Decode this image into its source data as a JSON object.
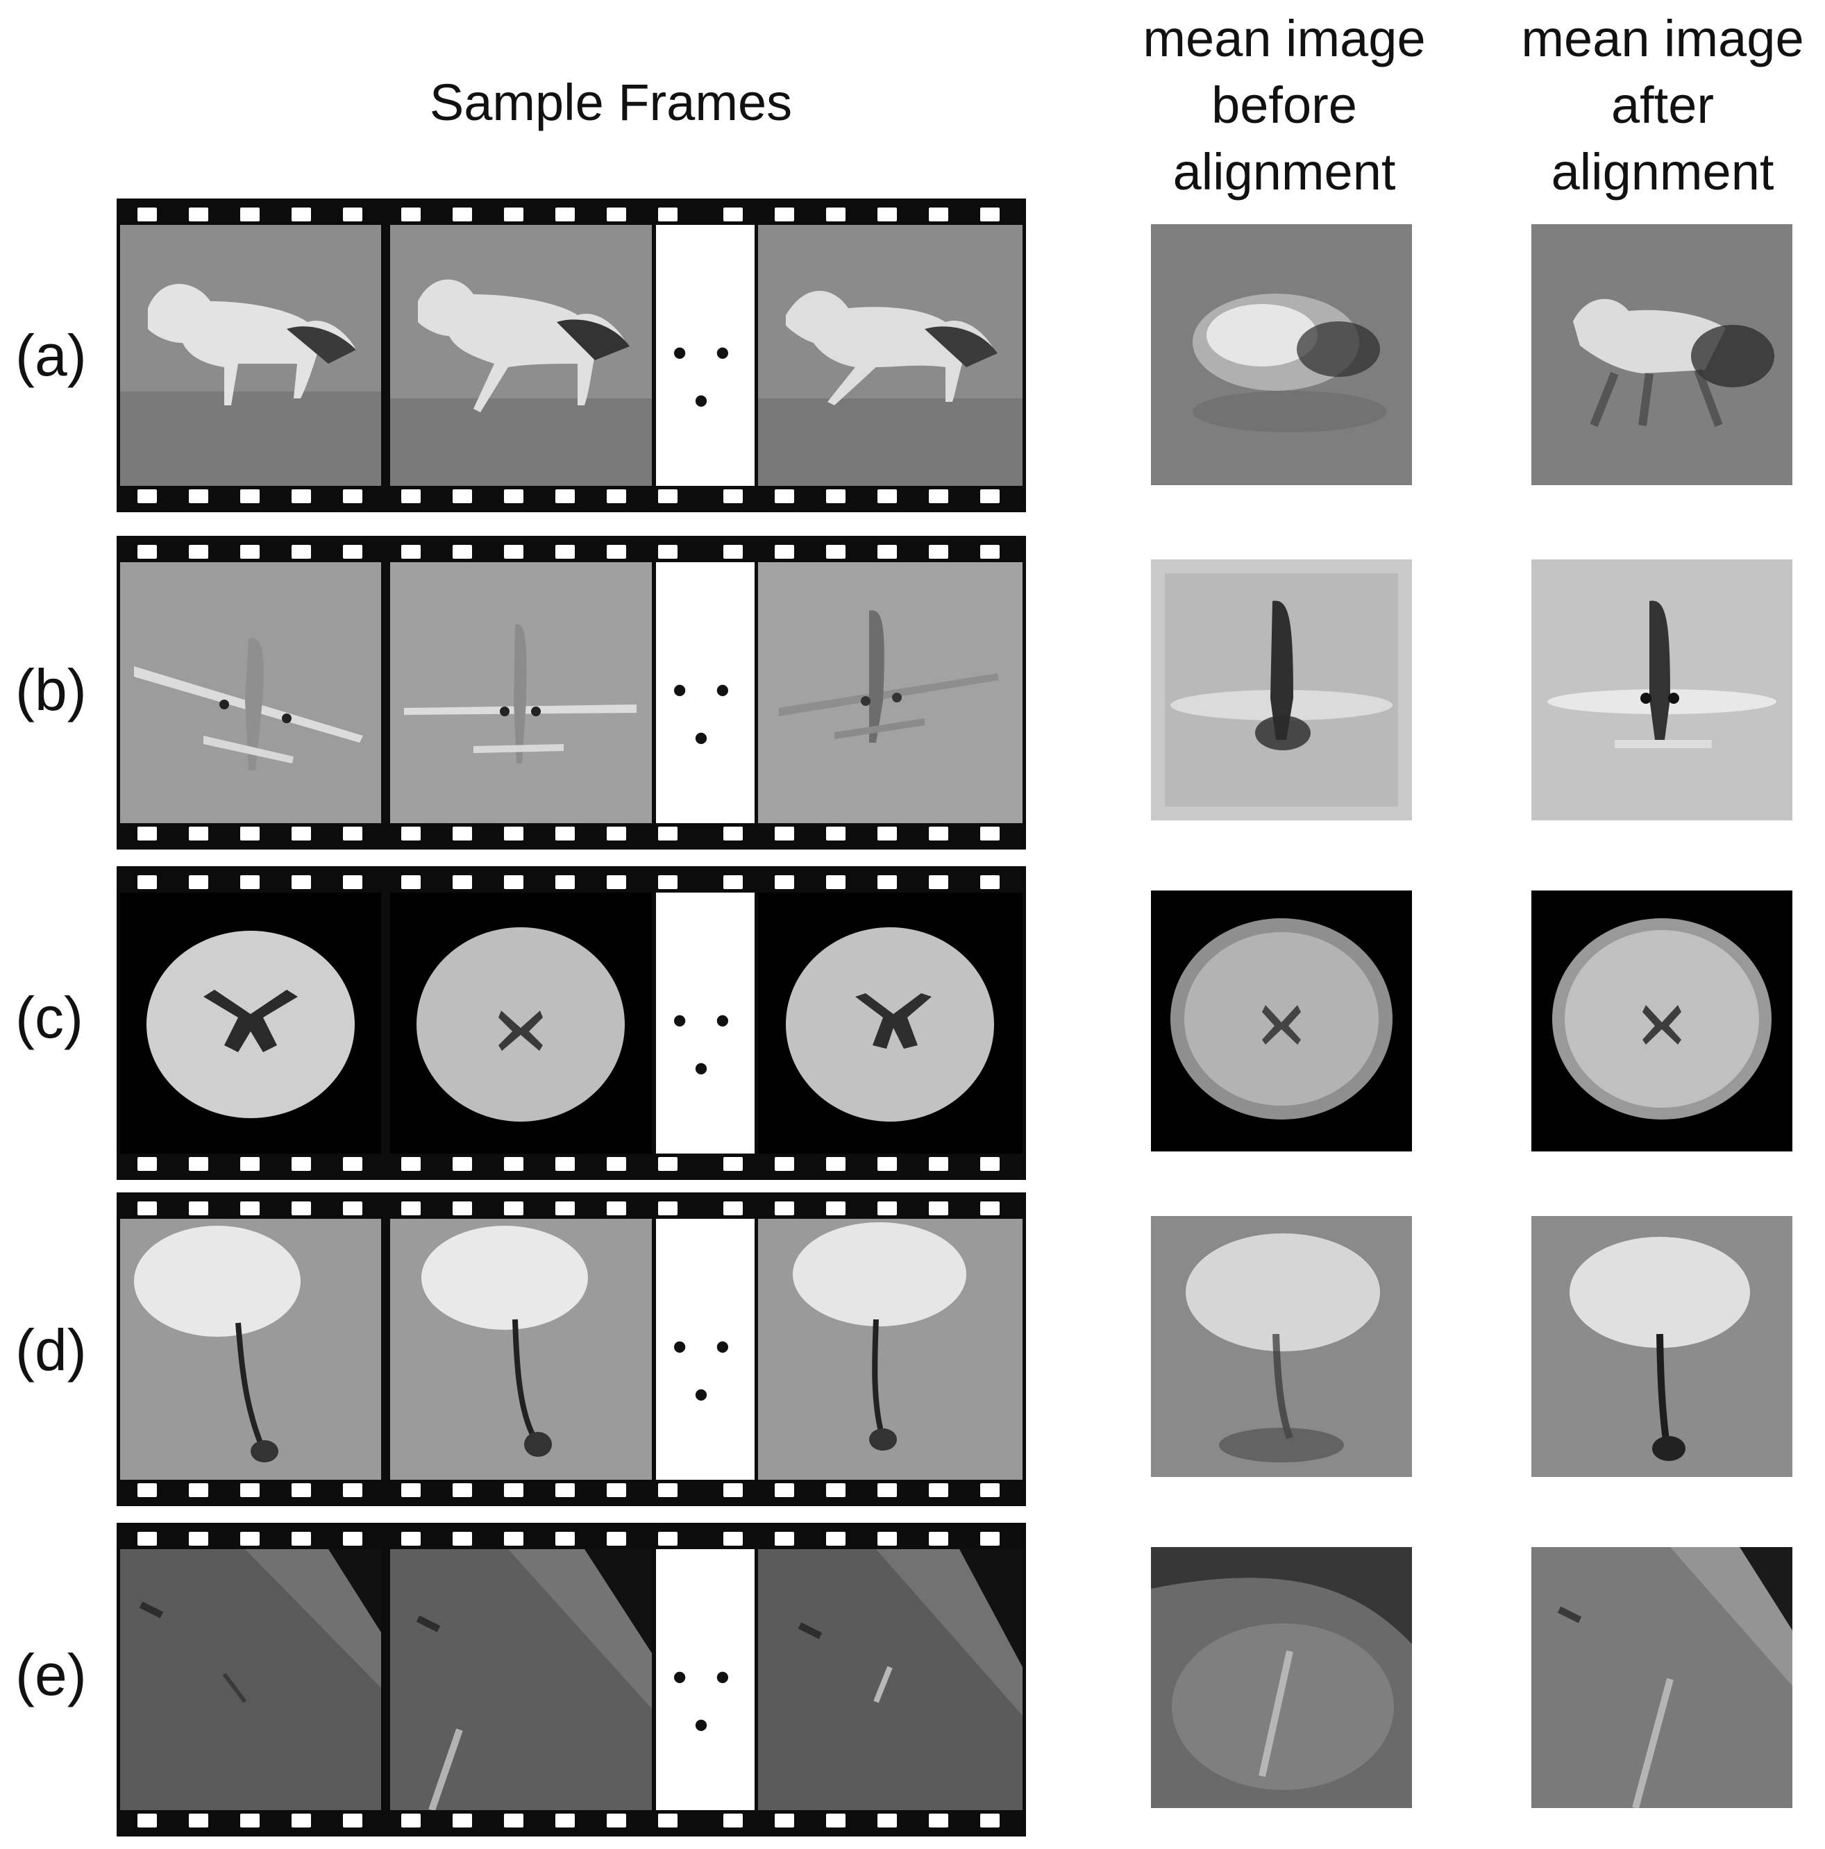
{
  "headers": {
    "sample_frames": "Sample Frames",
    "mean_before": "mean image\nbefore\nalignment",
    "mean_after": "mean image\nafter\nalignment"
  },
  "rows": [
    {
      "label": "(a)",
      "subject": "horse-icon",
      "ellipsis": "• • •"
    },
    {
      "label": "(b)",
      "subject": "airplane-icon",
      "ellipsis": "• • •"
    },
    {
      "label": "(c)",
      "subject": "brain-icon",
      "ellipsis": "• • •"
    },
    {
      "label": "(d)",
      "subject": "dandelion-icon",
      "ellipsis": "• • •"
    },
    {
      "label": "(e)",
      "subject": "surface-icon",
      "ellipsis": "• • •"
    }
  ]
}
